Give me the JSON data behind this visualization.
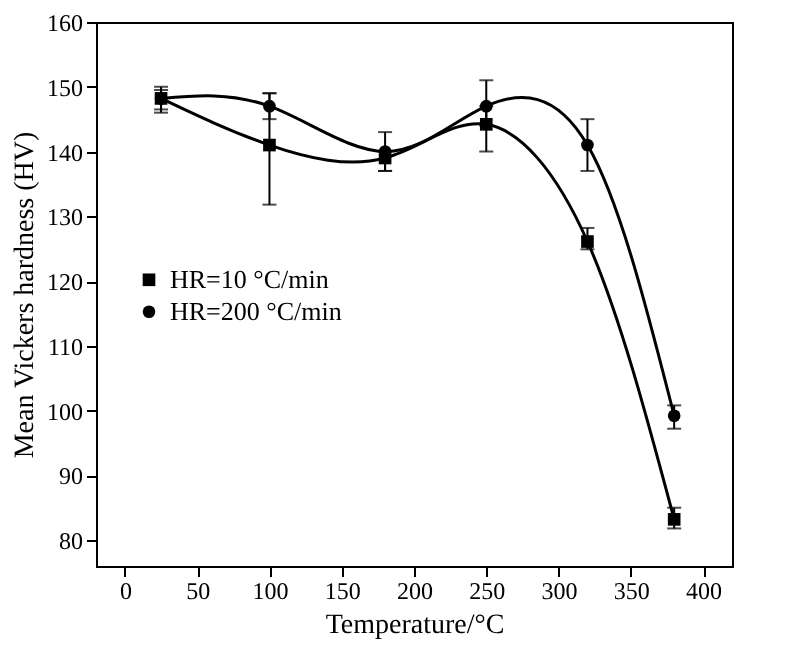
{
  "chart_data": {
    "type": "line",
    "xlabel": "Temperature/°C",
    "ylabel": "Mean Vickers hardness (HV)",
    "x": [
      25,
      100,
      180,
      250,
      320,
      380
    ],
    "series": [
      {
        "name": "HR=10 °C/min",
        "color": "#000000",
        "marker": "square",
        "values": [
          148.2,
          141,
          139,
          144.2,
          126.1,
          83.2
        ],
        "errors": [
          [
            146.5,
            149.5
          ],
          [
            131.8,
            149
          ],
          [
            137,
            140
          ],
          [
            140,
            147
          ],
          [
            124.9,
            128.2
          ],
          [
            81.8,
            85
          ]
        ]
      },
      {
        "name": "HR=200 °C/min",
        "color": "#000000",
        "marker": "circle",
        "values": [
          148.2,
          147,
          140,
          147,
          141,
          99.2
        ],
        "errors": [
          [
            146,
            150
          ],
          [
            145,
            149
          ],
          [
            137,
            143
          ],
          [
            144,
            151
          ],
          [
            137,
            145
          ],
          [
            97.2,
            100.8
          ]
        ]
      }
    ],
    "xlim": [
      -20,
      420
    ],
    "xticks": [
      0,
      50,
      100,
      150,
      200,
      250,
      300,
      350,
      400
    ],
    "ylim": [
      76,
      160
    ],
    "yticks": [
      80,
      90,
      100,
      110,
      120,
      130,
      140,
      150,
      160
    ],
    "grid": false,
    "legend": "left",
    "line_style": "solid"
  }
}
